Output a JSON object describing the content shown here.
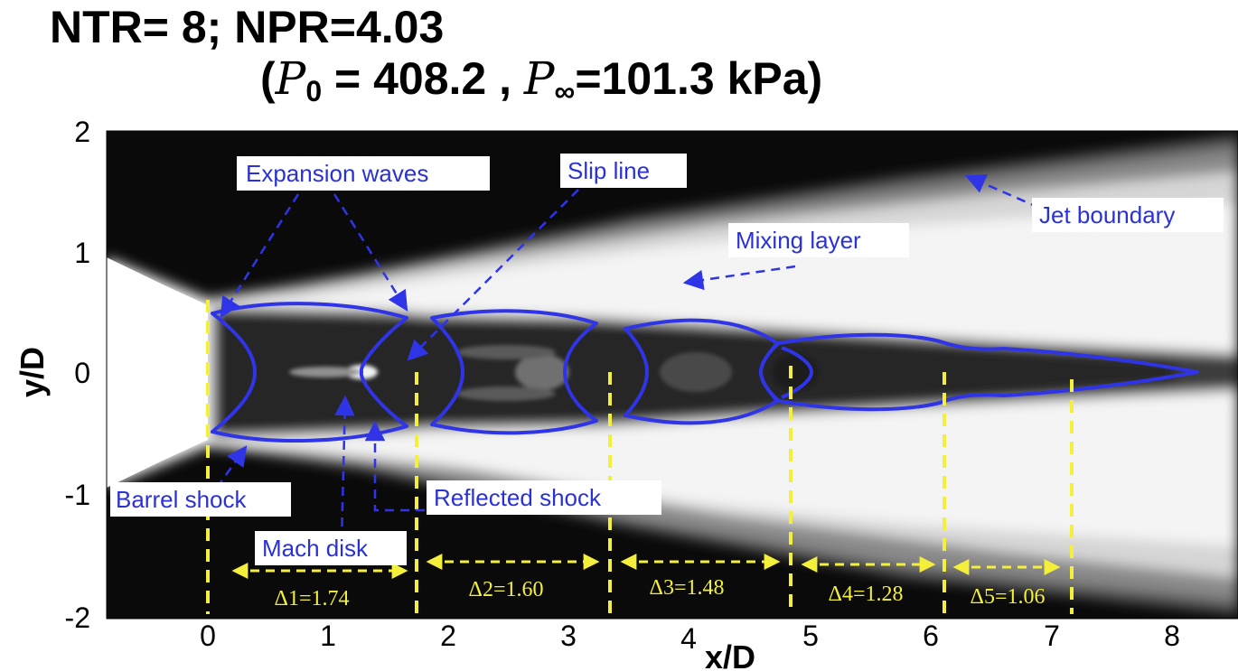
{
  "title": {
    "line1": "NTR= 8; NPR=4.03",
    "open": "(",
    "p0_symbol": "P",
    "p0_sub": "0",
    "p0_value": " = 408.2 , ",
    "pinf_symbol": "P",
    "pinf_sub": "∞",
    "pinf_value": "=101.3 kPa)"
  },
  "axes": {
    "xlabel": "x/D",
    "ylabel": "y/D",
    "x_ticks": [
      "0",
      "1",
      "2",
      "3",
      "4",
      "5",
      "6",
      "7",
      "8"
    ],
    "y_ticks": [
      "2",
      "1",
      "0",
      "-1",
      "-2"
    ],
    "xlim": [
      -0.85,
      8.5
    ],
    "ylim": [
      -2,
      2
    ]
  },
  "annotations": {
    "expansion_waves": "Expansion waves",
    "slip_line": "Slip line",
    "jet_boundary": "Jet boundary",
    "mixing_layer": "Mixing layer",
    "barrel_shock": "Barrel shock",
    "reflected_shock": "Reflected shock",
    "mach_disk": "Mach disk"
  },
  "shock_cells": [
    {
      "label": "Δ1=1.74",
      "start": 0.0,
      "end": 1.74
    },
    {
      "label": "Δ2=1.60",
      "start": 1.74,
      "end": 3.34
    },
    {
      "label": "Δ3=1.48",
      "start": 3.34,
      "end": 4.82
    },
    {
      "label": "Δ4=1.28",
      "start": 4.82,
      "end": 6.1
    },
    {
      "label": "Δ5=1.06",
      "start": 6.1,
      "end": 7.16
    }
  ],
  "colors": {
    "shock_contour": "#2f35e6",
    "cell_markers": "#f4ef3a",
    "callout_text": "#2a32d6",
    "field_background": "#0a0a0a"
  }
}
